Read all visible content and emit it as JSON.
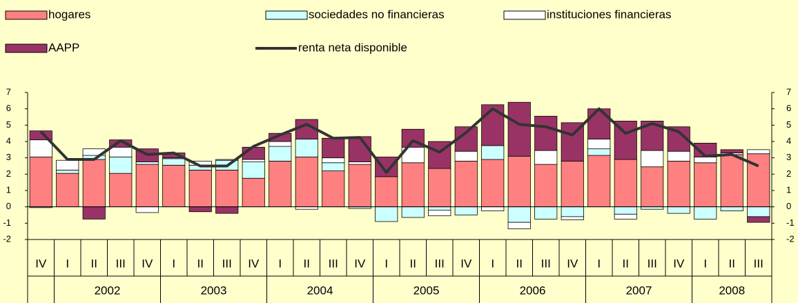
{
  "chart_data": {
    "type": "stacked_bar_line",
    "categories": [
      "IV",
      "I",
      "II",
      "III",
      "IV",
      "I",
      "II",
      "III",
      "IV",
      "I",
      "II",
      "III",
      "IV",
      "I",
      "II",
      "III",
      "IV",
      "I",
      "II",
      "III",
      "IV",
      "I",
      "II",
      "III",
      "IV",
      "I",
      "II",
      "III"
    ],
    "groups": [
      null,
      "2002",
      "2003",
      "2004",
      "2005",
      "2006",
      "2007",
      "2008"
    ],
    "series": [
      {
        "name": "hogares",
        "color": "#ff8080",
        "kind": "bar",
        "values": [
          3.05,
          2.05,
          2.9,
          2.05,
          2.6,
          2.55,
          2.25,
          2.25,
          1.75,
          2.8,
          3.05,
          2.2,
          2.6,
          1.85,
          2.7,
          2.35,
          2.8,
          2.9,
          3.1,
          2.6,
          2.8,
          3.15,
          2.9,
          2.45,
          2.8,
          2.7,
          3.2,
          3.25
        ]
      },
      {
        "name": "sociedades no financieras",
        "color": "#ccffff",
        "kind": "bar",
        "values": [
          -0.05,
          0.2,
          0.25,
          1.0,
          0.15,
          0.4,
          0.3,
          0.6,
          1.0,
          0.9,
          1.1,
          0.5,
          -0.1,
          -0.9,
          -0.65,
          -0.2,
          -0.5,
          0.85,
          -0.95,
          -0.75,
          -0.6,
          0.4,
          -0.45,
          -0.15,
          -0.4,
          -0.75,
          -0.25,
          -0.6
        ]
      },
      {
        "name": "instituciones financieras",
        "color": "#ffffff",
        "kind": "bar",
        "values": [
          1.05,
          0.6,
          0.4,
          0.6,
          -0.35,
          0.05,
          0.25,
          0.05,
          0.15,
          0.3,
          -0.15,
          0.3,
          0.15,
          0,
          0.95,
          -0.35,
          0.6,
          -0.25,
          -0.4,
          0.85,
          -0.2,
          0.6,
          -0.3,
          1.0,
          0.6,
          0.35,
          0.1,
          0.25
        ]
      },
      {
        "name": "AAPP",
        "color": "#993366",
        "kind": "bar",
        "values": [
          0.55,
          0,
          -0.75,
          0.45,
          0.8,
          0.3,
          -0.3,
          -0.4,
          0.75,
          0.5,
          1.2,
          1.2,
          1.55,
          1.2,
          1.1,
          1.65,
          1.5,
          2.5,
          3.3,
          2.1,
          2.35,
          1.85,
          2.35,
          1.8,
          1.5,
          0.85,
          0.2,
          -0.35
        ]
      },
      {
        "name": "renta neta disponible",
        "color": "#333333",
        "kind": "line",
        "values": [
          4.6,
          2.9,
          2.9,
          4.05,
          3.2,
          3.3,
          2.5,
          2.5,
          3.7,
          4.4,
          5.05,
          4.2,
          4.25,
          2.1,
          4.05,
          3.35,
          4.55,
          6.0,
          5.05,
          4.9,
          4.4,
          6.0,
          4.5,
          5.1,
          4.6,
          3.1,
          3.2,
          2.5
        ]
      }
    ],
    "ylim": [
      -2,
      7
    ],
    "yticks": [
      -2,
      -1,
      0,
      1,
      2,
      3,
      4,
      5,
      6,
      7
    ]
  }
}
